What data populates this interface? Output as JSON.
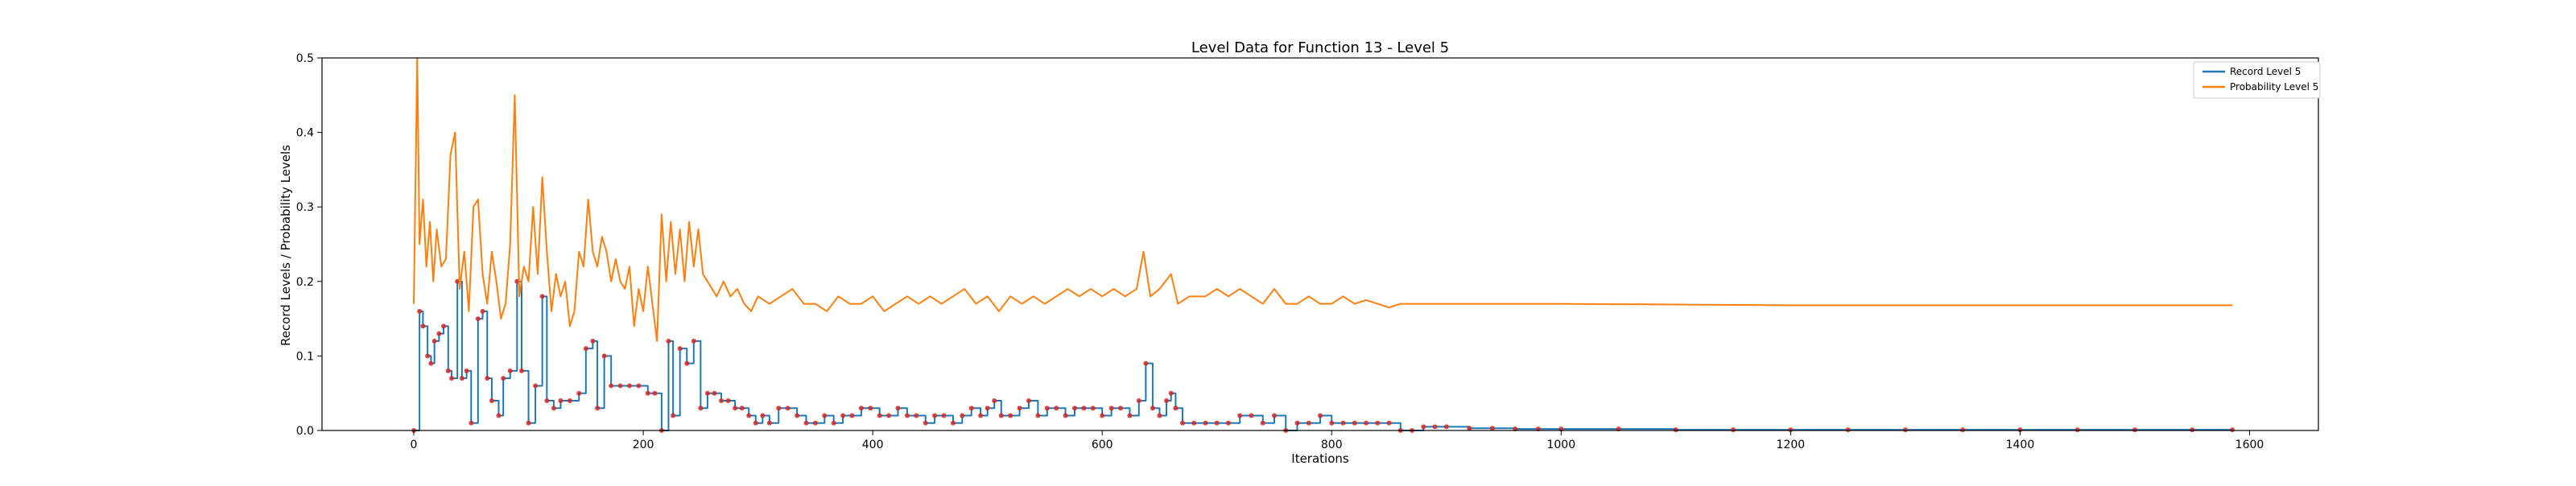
{
  "chart_data": {
    "type": "line",
    "title": "Level Data for Function 13 - Level 5",
    "xlabel": "Iterations",
    "ylabel": "Record Levels / Probability Levels",
    "xlim": [
      -80,
      1660
    ],
    "ylim": [
      0,
      0.5
    ],
    "x_ticks": [
      0,
      200,
      400,
      600,
      800,
      1000,
      1200,
      1400,
      1600
    ],
    "y_ticks": [
      0.0,
      0.1,
      0.2,
      0.3,
      0.4,
      0.5
    ],
    "x_tick_labels": [
      "0",
      "200",
      "400",
      "600",
      "800",
      "1000",
      "1200",
      "1400",
      "1600"
    ],
    "y_tick_labels": [
      "0.0",
      "0.1",
      "0.2",
      "0.3",
      "0.4",
      "0.5"
    ],
    "legend_position": "top-right",
    "grid": false,
    "colors": {
      "record": "#1f77b4",
      "probability": "#ff7f0e",
      "markers": "#d62728"
    },
    "series": [
      {
        "name": "Record Level 5",
        "style": "step",
        "markers": true,
        "points": [
          [
            0,
            0.0
          ],
          [
            5,
            0.16
          ],
          [
            8,
            0.14
          ],
          [
            12,
            0.1
          ],
          [
            15,
            0.09
          ],
          [
            18,
            0.12
          ],
          [
            22,
            0.13
          ],
          [
            26,
            0.14
          ],
          [
            30,
            0.08
          ],
          [
            33,
            0.07
          ],
          [
            38,
            0.2
          ],
          [
            42,
            0.07
          ],
          [
            46,
            0.08
          ],
          [
            50,
            0.01
          ],
          [
            56,
            0.15
          ],
          [
            60,
            0.16
          ],
          [
            64,
            0.07
          ],
          [
            68,
            0.04
          ],
          [
            74,
            0.02
          ],
          [
            78,
            0.07
          ],
          [
            84,
            0.08
          ],
          [
            90,
            0.2
          ],
          [
            94,
            0.08
          ],
          [
            100,
            0.01
          ],
          [
            106,
            0.06
          ],
          [
            112,
            0.18
          ],
          [
            116,
            0.04
          ],
          [
            122,
            0.03
          ],
          [
            128,
            0.04
          ],
          [
            136,
            0.04
          ],
          [
            144,
            0.05
          ],
          [
            150,
            0.11
          ],
          [
            156,
            0.12
          ],
          [
            160,
            0.03
          ],
          [
            166,
            0.1
          ],
          [
            172,
            0.06
          ],
          [
            180,
            0.06
          ],
          [
            188,
            0.06
          ],
          [
            196,
            0.06
          ],
          [
            204,
            0.05
          ],
          [
            210,
            0.05
          ],
          [
            216,
            0.0
          ],
          [
            222,
            0.12
          ],
          [
            226,
            0.02
          ],
          [
            232,
            0.11
          ],
          [
            238,
            0.09
          ],
          [
            244,
            0.12
          ],
          [
            250,
            0.03
          ],
          [
            256,
            0.05
          ],
          [
            262,
            0.05
          ],
          [
            268,
            0.04
          ],
          [
            274,
            0.04
          ],
          [
            280,
            0.03
          ],
          [
            286,
            0.03
          ],
          [
            292,
            0.02
          ],
          [
            298,
            0.01
          ],
          [
            304,
            0.02
          ],
          [
            310,
            0.01
          ],
          [
            318,
            0.03
          ],
          [
            326,
            0.03
          ],
          [
            334,
            0.02
          ],
          [
            342,
            0.01
          ],
          [
            350,
            0.01
          ],
          [
            358,
            0.02
          ],
          [
            366,
            0.01
          ],
          [
            374,
            0.02
          ],
          [
            382,
            0.02
          ],
          [
            390,
            0.03
          ],
          [
            398,
            0.03
          ],
          [
            406,
            0.02
          ],
          [
            414,
            0.02
          ],
          [
            422,
            0.03
          ],
          [
            430,
            0.02
          ],
          [
            438,
            0.02
          ],
          [
            446,
            0.01
          ],
          [
            454,
            0.02
          ],
          [
            462,
            0.02
          ],
          [
            470,
            0.01
          ],
          [
            478,
            0.02
          ],
          [
            486,
            0.03
          ],
          [
            494,
            0.02
          ],
          [
            500,
            0.03
          ],
          [
            506,
            0.04
          ],
          [
            512,
            0.02
          ],
          [
            520,
            0.02
          ],
          [
            528,
            0.03
          ],
          [
            536,
            0.04
          ],
          [
            544,
            0.02
          ],
          [
            552,
            0.03
          ],
          [
            560,
            0.03
          ],
          [
            568,
            0.02
          ],
          [
            576,
            0.03
          ],
          [
            584,
            0.03
          ],
          [
            592,
            0.03
          ],
          [
            600,
            0.02
          ],
          [
            608,
            0.03
          ],
          [
            616,
            0.03
          ],
          [
            624,
            0.02
          ],
          [
            632,
            0.04
          ],
          [
            638,
            0.09
          ],
          [
            644,
            0.03
          ],
          [
            650,
            0.02
          ],
          [
            656,
            0.04
          ],
          [
            660,
            0.05
          ],
          [
            664,
            0.03
          ],
          [
            670,
            0.01
          ],
          [
            680,
            0.01
          ],
          [
            690,
            0.01
          ],
          [
            700,
            0.01
          ],
          [
            710,
            0.01
          ],
          [
            720,
            0.02
          ],
          [
            730,
            0.02
          ],
          [
            740,
            0.01
          ],
          [
            750,
            0.02
          ],
          [
            760,
            0.0
          ],
          [
            770,
            0.01
          ],
          [
            780,
            0.01
          ],
          [
            790,
            0.02
          ],
          [
            800,
            0.01
          ],
          [
            810,
            0.01
          ],
          [
            820,
            0.01
          ],
          [
            830,
            0.01
          ],
          [
            840,
            0.01
          ],
          [
            850,
            0.01
          ],
          [
            860,
            0.0
          ],
          [
            870,
            0.0
          ],
          [
            880,
            0.005
          ],
          [
            890,
            0.005
          ],
          [
            900,
            0.005
          ],
          [
            920,
            0.003
          ],
          [
            940,
            0.003
          ],
          [
            960,
            0.002
          ],
          [
            980,
            0.002
          ],
          [
            1000,
            0.002
          ],
          [
            1050,
            0.002
          ],
          [
            1100,
            0.001
          ],
          [
            1150,
            0.001
          ],
          [
            1200,
            0.001
          ],
          [
            1250,
            0.001
          ],
          [
            1300,
            0.001
          ],
          [
            1350,
            0.001
          ],
          [
            1400,
            0.001
          ],
          [
            1450,
            0.001
          ],
          [
            1500,
            0.001
          ],
          [
            1550,
            0.001
          ],
          [
            1585,
            0.001
          ]
        ]
      },
      {
        "name": "Probability Level 5",
        "style": "line",
        "markers": false,
        "points": [
          [
            0,
            0.17
          ],
          [
            3,
            0.5
          ],
          [
            5,
            0.25
          ],
          [
            8,
            0.31
          ],
          [
            11,
            0.22
          ],
          [
            14,
            0.28
          ],
          [
            17,
            0.2
          ],
          [
            20,
            0.27
          ],
          [
            24,
            0.22
          ],
          [
            28,
            0.23
          ],
          [
            32,
            0.37
          ],
          [
            36,
            0.4
          ],
          [
            40,
            0.19
          ],
          [
            44,
            0.24
          ],
          [
            48,
            0.16
          ],
          [
            52,
            0.3
          ],
          [
            56,
            0.31
          ],
          [
            60,
            0.21
          ],
          [
            64,
            0.17
          ],
          [
            68,
            0.24
          ],
          [
            72,
            0.2
          ],
          [
            76,
            0.15
          ],
          [
            80,
            0.17
          ],
          [
            84,
            0.25
          ],
          [
            88,
            0.45
          ],
          [
            92,
            0.18
          ],
          [
            96,
            0.22
          ],
          [
            100,
            0.2
          ],
          [
            104,
            0.3
          ],
          [
            108,
            0.21
          ],
          [
            112,
            0.34
          ],
          [
            116,
            0.24
          ],
          [
            120,
            0.16
          ],
          [
            124,
            0.21
          ],
          [
            128,
            0.18
          ],
          [
            132,
            0.2
          ],
          [
            136,
            0.14
          ],
          [
            140,
            0.16
          ],
          [
            144,
            0.24
          ],
          [
            148,
            0.22
          ],
          [
            152,
            0.31
          ],
          [
            156,
            0.24
          ],
          [
            160,
            0.22
          ],
          [
            164,
            0.26
          ],
          [
            168,
            0.24
          ],
          [
            172,
            0.2
          ],
          [
            176,
            0.23
          ],
          [
            180,
            0.2
          ],
          [
            184,
            0.19
          ],
          [
            188,
            0.22
          ],
          [
            192,
            0.14
          ],
          [
            196,
            0.19
          ],
          [
            200,
            0.16
          ],
          [
            204,
            0.22
          ],
          [
            208,
            0.17
          ],
          [
            212,
            0.12
          ],
          [
            216,
            0.29
          ],
          [
            220,
            0.2
          ],
          [
            224,
            0.28
          ],
          [
            228,
            0.21
          ],
          [
            232,
            0.27
          ],
          [
            236,
            0.2
          ],
          [
            240,
            0.28
          ],
          [
            244,
            0.22
          ],
          [
            248,
            0.27
          ],
          [
            252,
            0.21
          ],
          [
            256,
            0.2
          ],
          [
            260,
            0.19
          ],
          [
            264,
            0.18
          ],
          [
            270,
            0.2
          ],
          [
            276,
            0.18
          ],
          [
            282,
            0.19
          ],
          [
            288,
            0.17
          ],
          [
            294,
            0.16
          ],
          [
            300,
            0.18
          ],
          [
            310,
            0.17
          ],
          [
            320,
            0.18
          ],
          [
            330,
            0.19
          ],
          [
            340,
            0.17
          ],
          [
            350,
            0.17
          ],
          [
            360,
            0.16
          ],
          [
            370,
            0.18
          ],
          [
            380,
            0.17
          ],
          [
            390,
            0.17
          ],
          [
            400,
            0.18
          ],
          [
            410,
            0.16
          ],
          [
            420,
            0.17
          ],
          [
            430,
            0.18
          ],
          [
            440,
            0.17
          ],
          [
            450,
            0.18
          ],
          [
            460,
            0.17
          ],
          [
            470,
            0.18
          ],
          [
            480,
            0.19
          ],
          [
            490,
            0.17
          ],
          [
            500,
            0.18
          ],
          [
            510,
            0.16
          ],
          [
            520,
            0.18
          ],
          [
            530,
            0.17
          ],
          [
            540,
            0.18
          ],
          [
            550,
            0.17
          ],
          [
            560,
            0.18
          ],
          [
            570,
            0.19
          ],
          [
            580,
            0.18
          ],
          [
            590,
            0.19
          ],
          [
            600,
            0.18
          ],
          [
            610,
            0.19
          ],
          [
            620,
            0.18
          ],
          [
            630,
            0.19
          ],
          [
            636,
            0.24
          ],
          [
            642,
            0.18
          ],
          [
            650,
            0.19
          ],
          [
            660,
            0.21
          ],
          [
            666,
            0.17
          ],
          [
            676,
            0.18
          ],
          [
            690,
            0.18
          ],
          [
            700,
            0.19
          ],
          [
            710,
            0.18
          ],
          [
            720,
            0.19
          ],
          [
            730,
            0.18
          ],
          [
            740,
            0.17
          ],
          [
            750,
            0.19
          ],
          [
            760,
            0.17
          ],
          [
            770,
            0.17
          ],
          [
            780,
            0.18
          ],
          [
            790,
            0.17
          ],
          [
            800,
            0.17
          ],
          [
            810,
            0.18
          ],
          [
            820,
            0.17
          ],
          [
            830,
            0.175
          ],
          [
            840,
            0.17
          ],
          [
            850,
            0.165
          ],
          [
            860,
            0.17
          ],
          [
            870,
            0.17
          ],
          [
            880,
            0.17
          ],
          [
            900,
            0.17
          ],
          [
            920,
            0.17
          ],
          [
            940,
            0.17
          ],
          [
            960,
            0.17
          ],
          [
            1000,
            0.17
          ],
          [
            1100,
            0.169
          ],
          [
            1200,
            0.168
          ],
          [
            1300,
            0.168
          ],
          [
            1400,
            0.168
          ],
          [
            1500,
            0.168
          ],
          [
            1585,
            0.168
          ]
        ]
      }
    ]
  }
}
